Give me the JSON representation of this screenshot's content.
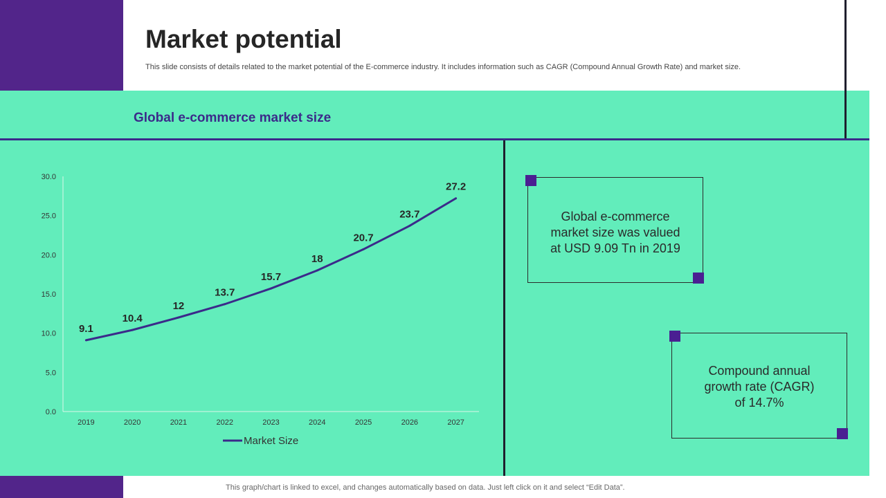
{
  "title": "Market potential",
  "subtitle": "This slide consists of details related to the market potential of the E-commerce industry. It includes information such as CAGR (Compound Annual Growth Rate) and market size.",
  "section_heading": "Global e-commerce market size",
  "chart_data": {
    "type": "line",
    "title": "Global e-commerce market size",
    "categories": [
      "2019",
      "2020",
      "2021",
      "2022",
      "2023",
      "2024",
      "2025",
      "2026",
      "2027"
    ],
    "series": [
      {
        "name": "Market Size",
        "values": [
          9.1,
          10.4,
          12,
          13.7,
          15.7,
          18,
          20.7,
          23.7,
          27.2
        ]
      }
    ],
    "data_labels": [
      "9.1",
      "10.4",
      "12",
      "13.7",
      "15.7",
      "18",
      "20.7",
      "23.7",
      "27.2"
    ],
    "ylim": [
      0,
      30
    ],
    "yticks": [
      "0.0",
      "5.0",
      "10.0",
      "15.0",
      "20.0",
      "25.0",
      "30.0"
    ],
    "xlabel": "",
    "ylabel": "",
    "legend_position": "bottom"
  },
  "info_boxes": [
    {
      "lines": [
        "Global e-commerce",
        "market size was valued",
        "at USD 9.09 Tn in 2019"
      ]
    },
    {
      "lines": [
        "Compound annual",
        "growth rate (CAGR)",
        "of 14.7%"
      ]
    }
  ],
  "footer_note": "This graph/chart is linked to excel, and changes automatically based on data. Just left click on it and select “Edit Data”.",
  "colors": {
    "purple": "#52258a",
    "mint": "#62edbb",
    "line": "#3b2a8a",
    "square": "#4a1f92"
  }
}
